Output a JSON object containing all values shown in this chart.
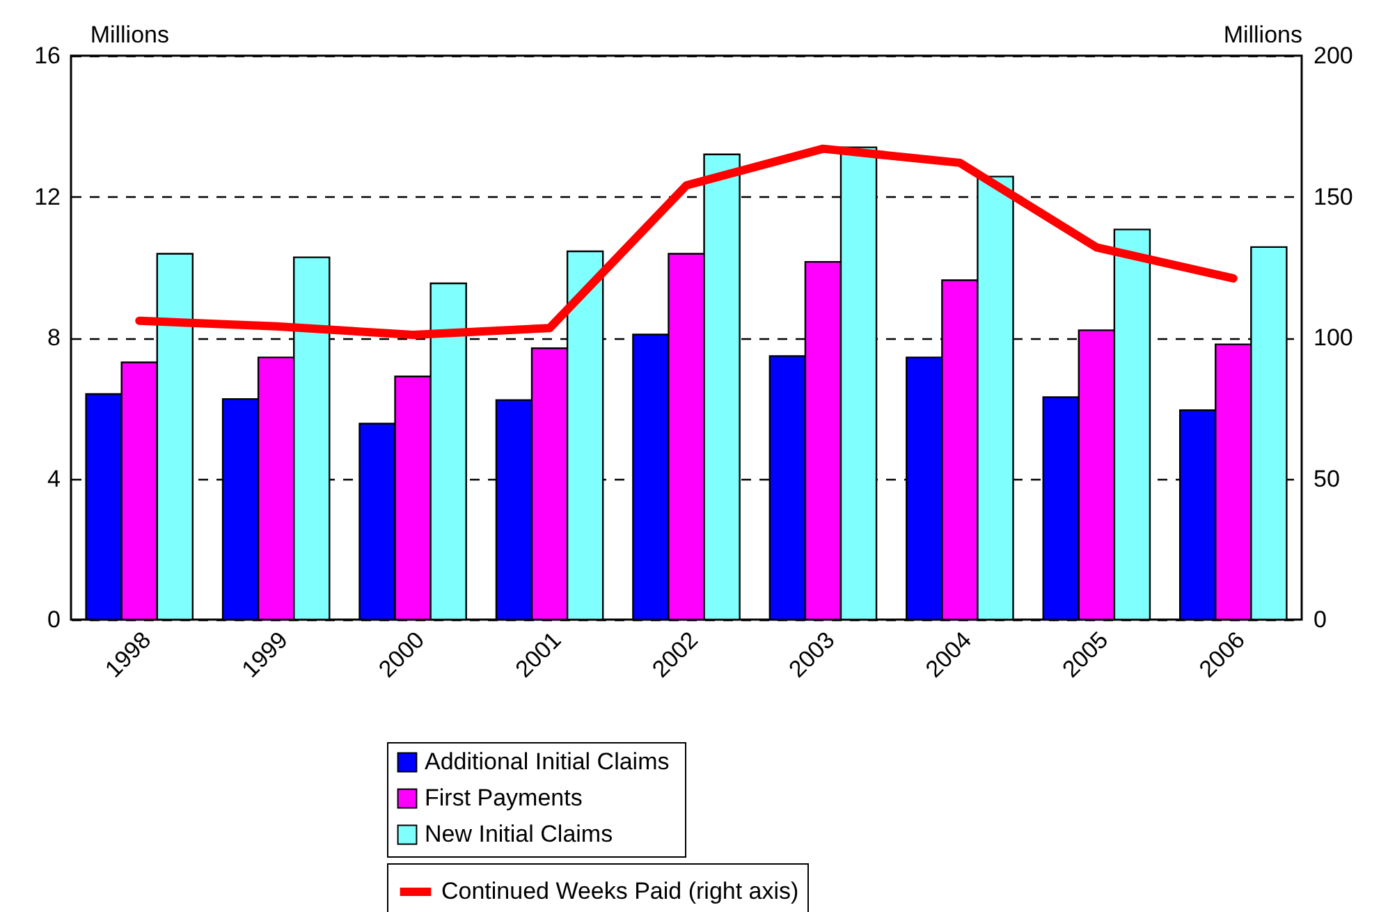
{
  "chart_data": {
    "type": "bar",
    "categories": [
      "1998",
      "1999",
      "2000",
      "2001",
      "2002",
      "2003",
      "2004",
      "2005",
      "2006"
    ],
    "series": [
      {
        "name": "Additional  Initial Claims",
        "color": "#0000ff",
        "values": [
          6.4,
          6.26,
          5.56,
          6.23,
          8.09,
          7.48,
          7.44,
          6.31,
          5.94
        ]
      },
      {
        "name": "First Payments",
        "color": "#ff00ff",
        "values": [
          7.3,
          7.44,
          6.9,
          7.7,
          10.38,
          10.15,
          9.63,
          8.21,
          7.81
        ]
      },
      {
        "name": "New Initial Claims",
        "color": "#80ffff",
        "values": [
          10.38,
          10.28,
          9.54,
          10.45,
          13.2,
          13.4,
          12.57,
          11.07,
          10.57
        ]
      },
      {
        "name": "Continued Weeks Paid (right axis)",
        "color": "#ff0000",
        "type": "line",
        "axis": "y2",
        "values": [
          106,
          104,
          101,
          103.4,
          154,
          167,
          162,
          132,
          121
        ]
      }
    ],
    "ylabel": "Millions",
    "y2label": "Millions",
    "ylim": [
      0,
      16
    ],
    "yticks": [
      0,
      4,
      8,
      12,
      16
    ],
    "y2lim": [
      0,
      200
    ],
    "y2ticks": [
      0,
      50,
      100,
      150,
      200
    ],
    "grid": "y",
    "legend": "bottom"
  }
}
